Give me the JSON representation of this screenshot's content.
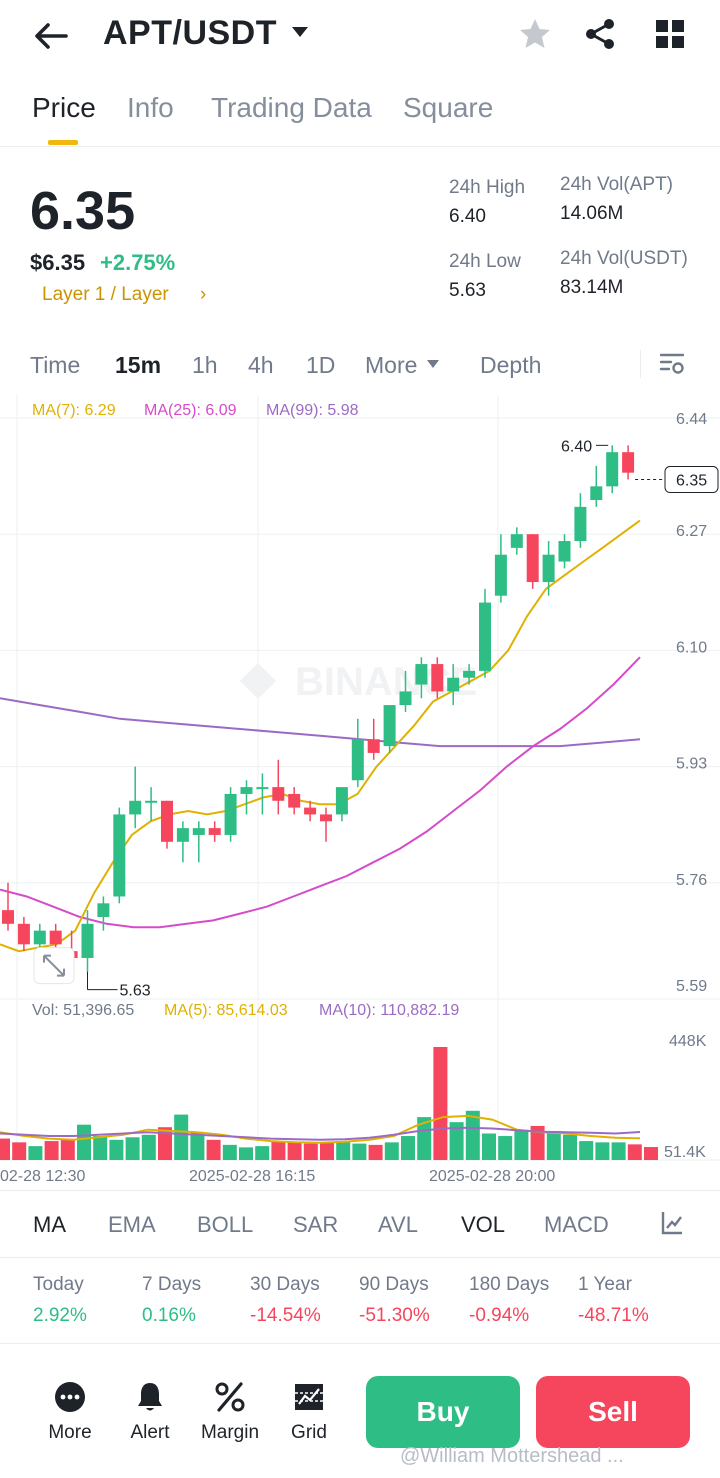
{
  "header": {
    "pair": "APT/USDT",
    "icons": [
      "back-icon",
      "caret-down-icon",
      "star-icon",
      "share-icon",
      "grid-icon"
    ]
  },
  "tabs": [
    "Price",
    "Info",
    "Trading Data",
    "Square"
  ],
  "price": {
    "last": "6.35",
    "usd": "$6.35",
    "change_pct": "+2.75%",
    "sector": "Layer 1 / Layer",
    "sector_arrow": "›",
    "high_label": "24h High",
    "high": "6.40",
    "low_label": "24h Low",
    "low": "5.63",
    "vol_base_label": "24h Vol(APT)",
    "vol_base": "14.06M",
    "vol_quote_label": "24h Vol(USDT)",
    "vol_quote": "83.14M"
  },
  "intervals": [
    "Time",
    "15m",
    "1h",
    "4h",
    "1D",
    "More",
    "Depth"
  ],
  "ma_legend": {
    "ma7": "MA(7): 6.29",
    "ma25": "MA(25): 6.09",
    "ma99": "MA(99): 5.98",
    "colors": {
      "ma7": "#e0b100",
      "ma25": "#d54bc9",
      "ma99": "#9b6bc4"
    }
  },
  "vol_legend": {
    "vol": "Vol: 51,396.65",
    "ma5": "MA(5): 85,614.03",
    "ma10": "MA(10): 110,882.19"
  },
  "chart_data": {
    "type": "candlestick",
    "interval": "15m",
    "ylim": [
      5.59,
      6.44
    ],
    "y_ticks": [
      "6.44",
      "6.27",
      "6.10",
      "5.93",
      "5.76",
      "5.59"
    ],
    "current_price": "6.35",
    "high_marker": "6.40",
    "low_marker": "5.63",
    "x_ticks": [
      "02-28 12:30",
      "2025-02-28 16:15",
      "2025-02-28 20:00"
    ],
    "vol_ticks": [
      "448K",
      "51.4K"
    ],
    "vol_max": 448,
    "candles": [
      {
        "o": 5.72,
        "h": 5.76,
        "l": 5.69,
        "c": 5.7
      },
      {
        "o": 5.7,
        "h": 5.71,
        "l": 5.66,
        "c": 5.67
      },
      {
        "o": 5.67,
        "h": 5.7,
        "l": 5.66,
        "c": 5.69
      },
      {
        "o": 5.69,
        "h": 5.7,
        "l": 5.65,
        "c": 5.67
      },
      {
        "o": 5.66,
        "h": 5.69,
        "l": 5.64,
        "c": 5.65
      },
      {
        "o": 5.65,
        "h": 5.72,
        "l": 5.63,
        "c": 5.7
      },
      {
        "o": 5.71,
        "h": 5.74,
        "l": 5.69,
        "c": 5.73
      },
      {
        "o": 5.74,
        "h": 5.87,
        "l": 5.73,
        "c": 5.86
      },
      {
        "o": 5.86,
        "h": 5.93,
        "l": 5.84,
        "c": 5.88
      },
      {
        "o": 5.88,
        "h": 5.9,
        "l": 5.85,
        "c": 5.88
      },
      {
        "o": 5.88,
        "h": 5.88,
        "l": 5.81,
        "c": 5.82
      },
      {
        "o": 5.82,
        "h": 5.85,
        "l": 5.79,
        "c": 5.84
      },
      {
        "o": 5.83,
        "h": 5.85,
        "l": 5.79,
        "c": 5.84
      },
      {
        "o": 5.84,
        "h": 5.85,
        "l": 5.82,
        "c": 5.83
      },
      {
        "o": 5.83,
        "h": 5.9,
        "l": 5.82,
        "c": 5.89
      },
      {
        "o": 5.89,
        "h": 5.91,
        "l": 5.86,
        "c": 5.9
      },
      {
        "o": 5.9,
        "h": 5.92,
        "l": 5.86,
        "c": 5.9
      },
      {
        "o": 5.9,
        "h": 5.94,
        "l": 5.86,
        "c": 5.88
      },
      {
        "o": 5.89,
        "h": 5.9,
        "l": 5.86,
        "c": 5.87
      },
      {
        "o": 5.87,
        "h": 5.88,
        "l": 5.85,
        "c": 5.86
      },
      {
        "o": 5.86,
        "h": 5.87,
        "l": 5.82,
        "c": 5.85
      },
      {
        "o": 5.86,
        "h": 5.9,
        "l": 5.85,
        "c": 5.9
      },
      {
        "o": 5.91,
        "h": 6.0,
        "l": 5.9,
        "c": 5.97
      },
      {
        "o": 5.97,
        "h": 6.0,
        "l": 5.94,
        "c": 5.95
      },
      {
        "o": 5.96,
        "h": 6.02,
        "l": 5.95,
        "c": 6.02
      },
      {
        "o": 6.02,
        "h": 6.07,
        "l": 6.01,
        "c": 6.04
      },
      {
        "o": 6.05,
        "h": 6.09,
        "l": 6.03,
        "c": 6.08
      },
      {
        "o": 6.08,
        "h": 6.09,
        "l": 6.03,
        "c": 6.04
      },
      {
        "o": 6.04,
        "h": 6.08,
        "l": 6.02,
        "c": 6.06
      },
      {
        "o": 6.06,
        "h": 6.08,
        "l": 6.05,
        "c": 6.07
      },
      {
        "o": 6.07,
        "h": 6.19,
        "l": 6.06,
        "c": 6.17
      },
      {
        "o": 6.18,
        "h": 6.27,
        "l": 6.17,
        "c": 6.24
      },
      {
        "o": 6.25,
        "h": 6.28,
        "l": 6.24,
        "c": 6.27
      },
      {
        "o": 6.27,
        "h": 6.27,
        "l": 6.19,
        "c": 6.2
      },
      {
        "o": 6.2,
        "h": 6.26,
        "l": 6.18,
        "c": 6.24
      },
      {
        "o": 6.23,
        "h": 6.27,
        "l": 6.22,
        "c": 6.26
      },
      {
        "o": 6.26,
        "h": 6.33,
        "l": 6.25,
        "c": 6.31
      },
      {
        "o": 6.32,
        "h": 6.37,
        "l": 6.31,
        "c": 6.34
      },
      {
        "o": 6.34,
        "h": 6.4,
        "l": 6.33,
        "c": 6.39
      },
      {
        "o": 6.39,
        "h": 6.4,
        "l": 6.35,
        "c": 6.36
      }
    ],
    "volumes": [
      85,
      70,
      55,
      75,
      80,
      140,
      95,
      80,
      90,
      100,
      130,
      180,
      110,
      80,
      60,
      50,
      55,
      75,
      70,
      65,
      70,
      75,
      65,
      60,
      70,
      95,
      170,
      448,
      150,
      195,
      105,
      95,
      120,
      135,
      115,
      100,
      75,
      70,
      70,
      62,
      51.4
    ],
    "ma7": [
      5.67,
      5.66,
      5.665,
      5.67,
      5.69,
      5.745,
      5.79,
      5.83,
      5.85,
      5.86,
      5.865,
      5.86,
      5.865,
      5.875,
      5.885,
      5.89,
      5.88,
      5.875,
      5.875,
      5.89,
      5.93,
      5.96,
      5.99,
      6.025,
      6.04,
      6.055,
      6.07,
      6.1,
      6.15,
      6.19,
      6.21,
      6.23,
      6.25,
      6.27,
      6.29
    ],
    "ma25": [
      5.75,
      5.74,
      5.725,
      5.71,
      5.7,
      5.695,
      5.695,
      5.7,
      5.705,
      5.715,
      5.725,
      5.74,
      5.755,
      5.77,
      5.79,
      5.81,
      5.835,
      5.865,
      5.895,
      5.93,
      5.96,
      5.985,
      6.015,
      6.05,
      6.09
    ],
    "ma99": [
      6.03,
      6.02,
      6.01,
      6.0,
      5.995,
      5.99,
      5.985,
      5.98,
      5.975,
      5.97,
      5.965,
      5.96,
      5.96,
      5.96,
      5.96,
      5.965,
      5.97
    ],
    "vol_ma5": [
      110,
      95,
      85,
      80,
      90,
      100,
      120,
      115,
      110,
      100,
      85,
      75,
      70,
      68,
      72,
      80,
      95,
      140,
      170,
      175,
      160,
      120,
      110,
      105,
      95,
      88,
      86
    ],
    "vol_ma10": [
      105,
      100,
      95,
      95,
      100,
      105,
      110,
      105,
      100,
      95,
      90,
      85,
      82,
      80,
      82,
      88,
      100,
      115,
      125,
      128,
      125,
      118,
      112,
      110,
      108,
      105,
      111
    ]
  },
  "indicators": [
    "MA",
    "EMA",
    "BOLL",
    "SAR",
    "AVL",
    "VOL",
    "MACD"
  ],
  "performance": [
    {
      "label": "Today",
      "value": "2.92%",
      "dir": "up"
    },
    {
      "label": "7 Days",
      "value": "0.16%",
      "dir": "up"
    },
    {
      "label": "30 Days",
      "value": "-14.54%",
      "dir": "down"
    },
    {
      "label": "90 Days",
      "value": "-51.30%",
      "dir": "down"
    },
    {
      "label": "180 Days",
      "value": "-0.94%",
      "dir": "down"
    },
    {
      "label": "1 Year",
      "value": "-48.71%",
      "dir": "down"
    }
  ],
  "bottom_bar": {
    "items": [
      "More",
      "Alert",
      "Margin",
      "Grid"
    ],
    "buy": "Buy",
    "sell": "Sell",
    "buy_color": "#2ebd85",
    "sell_color": "#f6465d"
  },
  "watermark": "@William Mottershead ..."
}
